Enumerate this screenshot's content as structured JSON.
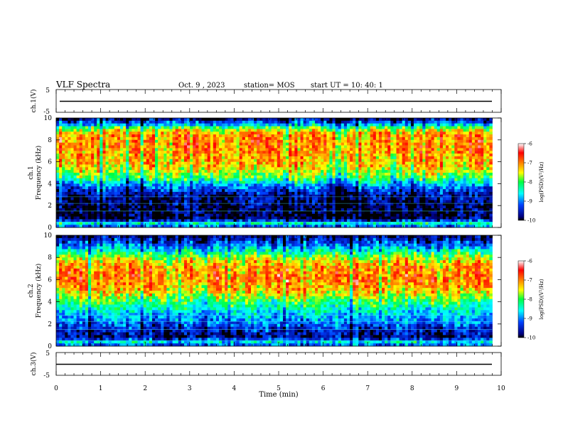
{
  "header": {
    "title": "VLF Spectra",
    "date": "Oct. 9 , 2023",
    "station": "station= MOS",
    "start": "start UT =  10: 40: 1"
  },
  "chart_data": [
    {
      "type": "line",
      "panel": "ch1-voltage",
      "ylabel": "ch.1(V)",
      "ylim": [
        -5,
        5
      ],
      "y_tick_labels": [
        "5",
        "-5"
      ],
      "series": [
        {
          "x": [
            0,
            9.8
          ],
          "values": [
            0,
            0
          ]
        }
      ]
    },
    {
      "type": "heatmap",
      "panel": "ch1-spectrogram",
      "ylabel": "ch.1\nFrequency (kHz)",
      "ylim": [
        0,
        10
      ],
      "y_ticks": [
        0,
        2,
        4,
        6,
        8,
        10
      ],
      "xlim": [
        0,
        10
      ],
      "data_extent_min": 9.8,
      "colorbar": {
        "label": "log(PSD)(V²/Hz)",
        "range": [
          -10,
          -6
        ],
        "ticks": [
          "-6",
          "-7",
          "-8",
          "-9",
          "-10"
        ]
      },
      "band_profile": [
        [
          0.0,
          -9.6
        ],
        [
          0.3,
          -8.2
        ],
        [
          0.8,
          -9.9
        ],
        [
          1.5,
          -9.9
        ],
        [
          2.2,
          -9.8
        ],
        [
          3.0,
          -9.6
        ],
        [
          3.8,
          -9.0
        ],
        [
          4.5,
          -8.0
        ],
        [
          5.5,
          -7.3
        ],
        [
          6.5,
          -7.1
        ],
        [
          7.5,
          -7.0
        ],
        [
          8.5,
          -7.0
        ],
        [
          9.0,
          -7.6
        ],
        [
          9.4,
          -8.8
        ],
        [
          10.0,
          -9.9
        ]
      ]
    },
    {
      "type": "heatmap",
      "panel": "ch2-spectrogram",
      "ylabel": "ch.2\nFrequency (kHz)",
      "ylim": [
        0,
        10
      ],
      "y_ticks": [
        0,
        2,
        4,
        6,
        8,
        10
      ],
      "xlim": [
        0,
        10
      ],
      "data_extent_min": 9.8,
      "colorbar": {
        "label": "log(PSD)(V²/Hz)",
        "range": [
          -10,
          -6
        ],
        "ticks": [
          "-6",
          "-7",
          "-8",
          "-9",
          "-10"
        ]
      },
      "band_profile": [
        [
          0.0,
          -9.5
        ],
        [
          0.3,
          -8.4
        ],
        [
          0.8,
          -9.7
        ],
        [
          1.5,
          -9.4
        ],
        [
          2.2,
          -9.0
        ],
        [
          3.0,
          -8.6
        ],
        [
          4.0,
          -8.0
        ],
        [
          5.0,
          -7.2
        ],
        [
          6.0,
          -6.9
        ],
        [
          7.0,
          -7.0
        ],
        [
          7.8,
          -7.4
        ],
        [
          8.5,
          -8.3
        ],
        [
          9.2,
          -9.1
        ],
        [
          10.0,
          -9.8
        ]
      ]
    },
    {
      "type": "line",
      "panel": "ch3-voltage",
      "ylabel": "ch.3(V)",
      "ylim": [
        -5,
        5
      ],
      "y_tick_labels": [
        "5",
        "-5"
      ],
      "series": [
        {
          "x": [
            0,
            9.8
          ],
          "values": [
            0,
            0
          ]
        }
      ]
    }
  ],
  "xaxis": {
    "label": "Time  (min)",
    "ticks": [
      0,
      1,
      2,
      3,
      4,
      5,
      6,
      7,
      8,
      9,
      10
    ]
  }
}
